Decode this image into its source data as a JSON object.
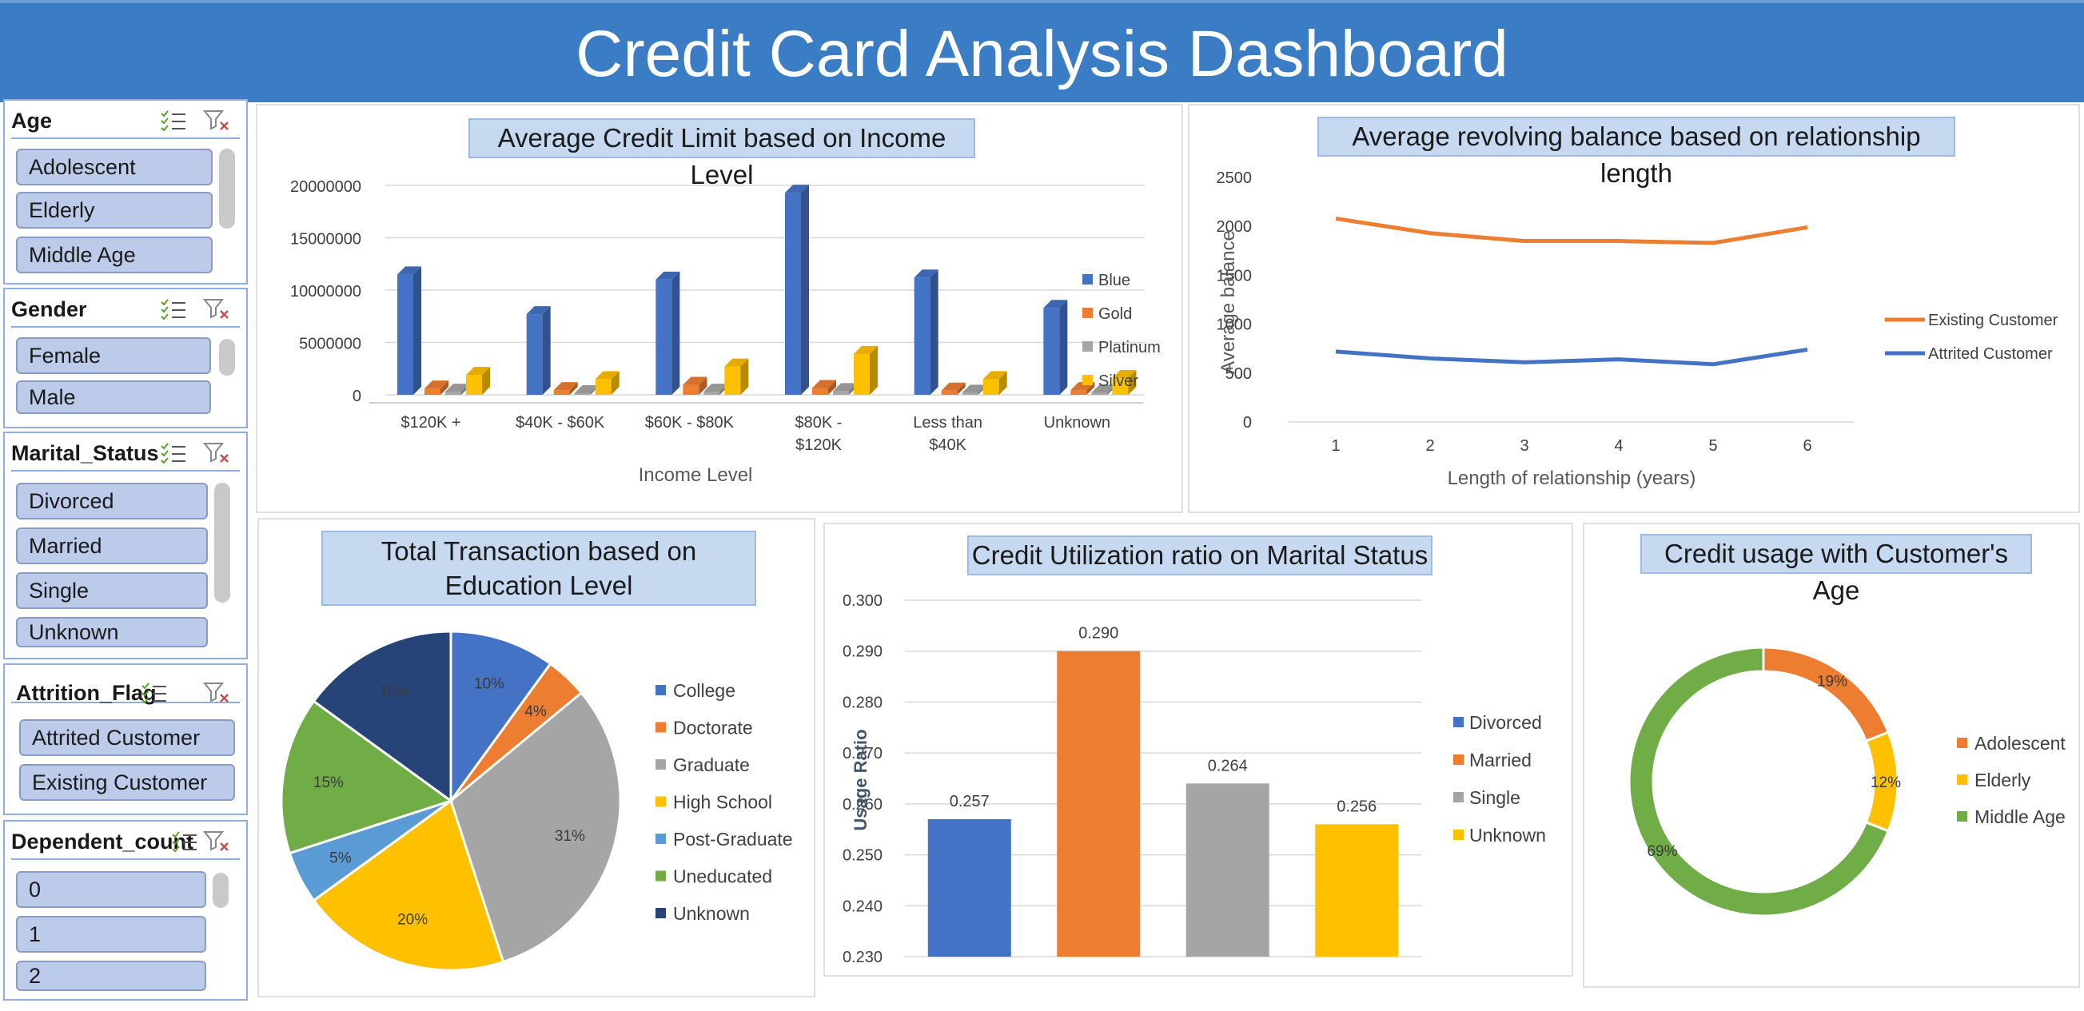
{
  "header": {
    "title": "Credit Card Analysis Dashboard"
  },
  "slicers": {
    "age": {
      "title": "Age",
      "items": [
        "Adolescent",
        "Elderly",
        "Middle Age"
      ]
    },
    "gender": {
      "title": "Gender",
      "items": [
        "Female",
        "Male"
      ]
    },
    "marital": {
      "title": "Marital_Status",
      "items": [
        "Divorced",
        "Married",
        "Single",
        "Unknown"
      ]
    },
    "attrition": {
      "title": "Attrition_Flag",
      "items": [
        "Attrited Customer",
        "Existing Customer"
      ]
    },
    "dependent": {
      "title": "Dependent_count",
      "items": [
        "0",
        "1",
        "2"
      ]
    }
  },
  "icons": {
    "multi_select": "multi-select-icon",
    "clear_filter": "clear-filter-icon"
  },
  "chart_data": [
    {
      "id": "income",
      "type": "bar",
      "title": "Average Credit Limit based on Income Level",
      "xlabel": "Income Level",
      "ylabel": "",
      "categories": [
        "$120K +",
        "$40K - $60K",
        "$60K - $80K",
        "$80K - $120K",
        "Less than $40K",
        "Unknown"
      ],
      "category_lines": [
        [
          "$120K +"
        ],
        [
          "$40K - $60K"
        ],
        [
          "$60K - $80K"
        ],
        [
          "$80K -",
          "$120K"
        ],
        [
          "Less than",
          "$40K"
        ],
        [
          "Unknown"
        ]
      ],
      "series": [
        {
          "name": "Blue",
          "color": "#4472c4",
          "values": [
            11500000,
            7700000,
            11000000,
            19300000,
            11200000,
            8300000
          ]
        },
        {
          "name": "Gold",
          "color": "#ed7d31",
          "values": [
            600000,
            450000,
            950000,
            650000,
            400000,
            450000
          ]
        },
        {
          "name": "Platinum",
          "color": "#a5a5a5",
          "values": [
            300000,
            150000,
            300000,
            350000,
            200000,
            200000
          ]
        },
        {
          "name": "Silver",
          "color": "#ffc000",
          "values": [
            1900000,
            1500000,
            2700000,
            3900000,
            1500000,
            1600000
          ]
        }
      ],
      "yticks": [
        "0",
        "5000000",
        "10000000",
        "15000000",
        "20000000"
      ],
      "ylim": [
        0,
        20000000
      ],
      "legend": "right"
    },
    {
      "id": "revolving",
      "type": "line",
      "title": "Average revolving balance based on relationship length",
      "xlabel": "Length of relationship (years)",
      "ylabel": "Average balance",
      "x": [
        "1",
        "2",
        "3",
        "4",
        "5",
        "6"
      ],
      "series": [
        {
          "name": "Existing Customer",
          "color": "#ed7d31",
          "values": [
            2080,
            1930,
            1850,
            1850,
            1830,
            1990
          ]
        },
        {
          "name": "Attrited Customer",
          "color": "#4472c4",
          "values": [
            720,
            650,
            610,
            640,
            590,
            740
          ]
        }
      ],
      "yticks": [
        "0",
        "500",
        "1000",
        "1500",
        "2000",
        "2500"
      ],
      "ylim": [
        0,
        2500
      ],
      "legend": "right"
    },
    {
      "id": "education",
      "type": "pie",
      "title": "Total Transaction based on Education Level",
      "slices": [
        {
          "name": "College",
          "value": 10,
          "label": "10%",
          "color": "#4472c4"
        },
        {
          "name": "Doctorate",
          "value": 4,
          "label": "4%",
          "color": "#ed7d31"
        },
        {
          "name": "Graduate",
          "value": 31,
          "label": "31%",
          "color": "#a5a5a5"
        },
        {
          "name": "High School",
          "value": 20,
          "label": "20%",
          "color": "#ffc000"
        },
        {
          "name": "Post-Graduate",
          "value": 5,
          "label": "5%",
          "color": "#5b9bd5"
        },
        {
          "name": "Uneducated",
          "value": 15,
          "label": "15%",
          "color": "#70ad47"
        },
        {
          "name": "Unknown",
          "value": 15,
          "label": "15%",
          "color": "#264478"
        }
      ],
      "legend": "right"
    },
    {
      "id": "utilization",
      "type": "bar",
      "title": "Credit Utilization ratio on Marital Status",
      "xlabel": "",
      "ylabel": "Usage Ratio",
      "categories": [
        "Divorced",
        "Married",
        "Single",
        "Unknown"
      ],
      "values": [
        0.257,
        0.29,
        0.264,
        0.256
      ],
      "labels": [
        "0.257",
        "0.290",
        "0.264",
        "0.256"
      ],
      "colors": [
        "#4472c4",
        "#ed7d31",
        "#a5a5a5",
        "#ffc000"
      ],
      "yticks": [
        "0.230",
        "0.240",
        "0.250",
        "0.260",
        "0.270",
        "0.280",
        "0.290",
        "0.300"
      ],
      "ylim": [
        0.23,
        0.3
      ],
      "legend": "right"
    },
    {
      "id": "age",
      "type": "pie",
      "title": "Credit usage with Customer's Age",
      "slices": [
        {
          "name": "Adolescent",
          "value": 19,
          "label": "19%",
          "color": "#ed7d31"
        },
        {
          "name": "Elderly",
          "value": 12,
          "label": "12%",
          "color": "#ffc000"
        },
        {
          "name": "Middle Age",
          "value": 69,
          "label": "69%",
          "color": "#70ad47"
        }
      ],
      "legend": "right"
    }
  ]
}
